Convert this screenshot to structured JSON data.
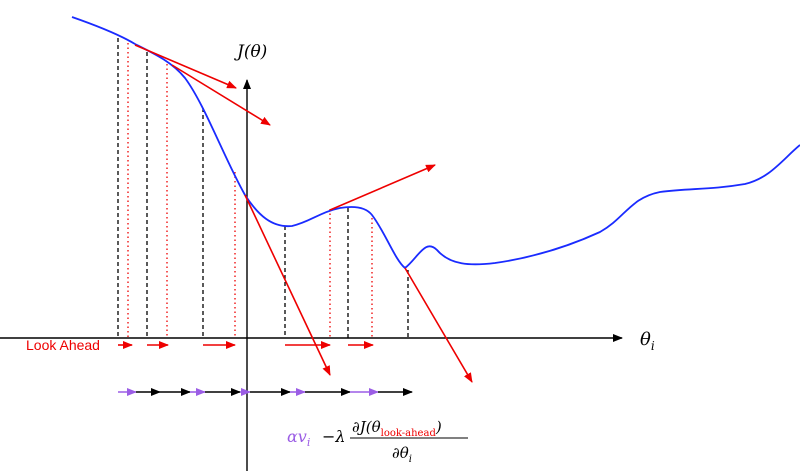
{
  "axes": {
    "y_label": "J(θ)",
    "x_label": "θ",
    "x_label_sub": "i"
  },
  "legend": {
    "look_ahead": "Look Ahead"
  },
  "formula": {
    "momentum": "αv",
    "momentum_sub": "i",
    "gradient_prefix": "−λ",
    "numerator": "∂J(θ",
    "numerator_sub": "look-ahead",
    "numerator_close": ")",
    "denominator": "∂θ",
    "denominator_sub": "i"
  }
}
